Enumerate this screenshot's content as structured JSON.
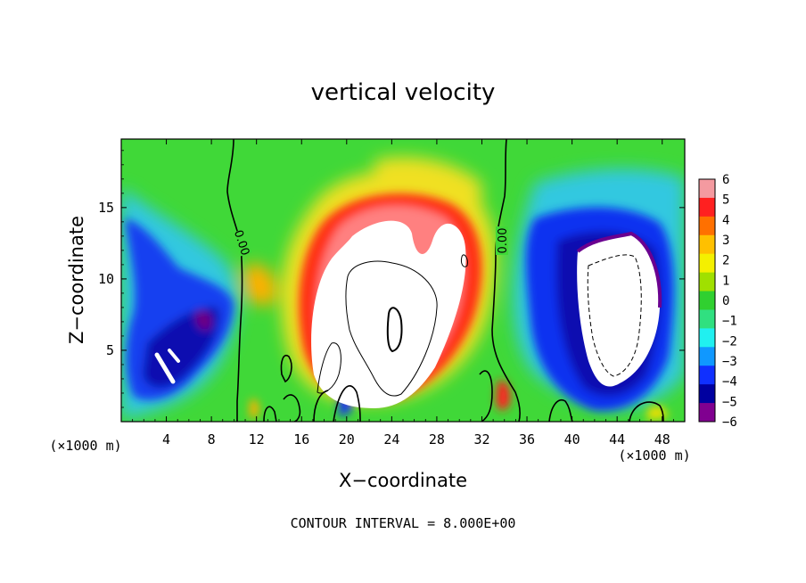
{
  "chart_data": {
    "type": "heatmap",
    "title": "vertical velocity",
    "xlabel": "X−coordinate",
    "ylabel": "Z−coordinate",
    "x_unit": "(×1000 m)",
    "y_unit": "(×1000 m)",
    "xlim": [
      0,
      50
    ],
    "ylim": [
      0,
      19.8
    ],
    "x_ticks": [
      "4",
      "8",
      "12",
      "16",
      "20",
      "24",
      "28",
      "32",
      "36",
      "40",
      "44",
      "48"
    ],
    "y_ticks": [
      "5",
      "10",
      "15"
    ],
    "colorbar": {
      "levels": [
        "6",
        "5",
        "4",
        "3",
        "2",
        "1",
        "0",
        "−1",
        "−2",
        "−3",
        "−4",
        "−5",
        "−6"
      ],
      "range": [
        -6,
        6
      ],
      "colors": [
        "#f49aa0",
        "#ff2020",
        "#ff7000",
        "#ffc000",
        "#f4f000",
        "#a0e000",
        "#30d030",
        "#30e080",
        "#20f0f0",
        "#1098ff",
        "#1030ff",
        "#0000a0",
        "#800090"
      ]
    },
    "contour_labels": [
      "0.00",
      "0.00"
    ],
    "contour_interval": "CONTOUR INTERVAL = 8.000E+00",
    "features": [
      {
        "name": "updraft core",
        "x_range": [
          17,
          32
        ],
        "z_range": [
          0.5,
          16
        ],
        "max_w": "> 6"
      },
      {
        "name": "downdraft core",
        "x_range": [
          38,
          49
        ],
        "z_range": [
          2,
          13.5
        ],
        "min_w": "< -6"
      },
      {
        "name": "left downdraft",
        "x_range": [
          0,
          11
        ],
        "z_range": [
          1,
          13
        ],
        "min_w": "< -6"
      }
    ]
  }
}
